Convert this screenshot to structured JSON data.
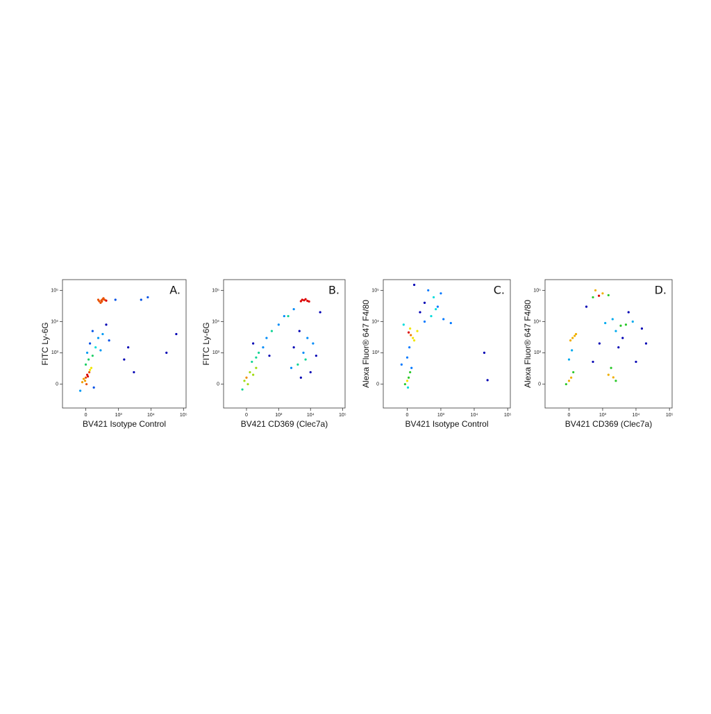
{
  "chart_data": [
    {
      "type": "scatter",
      "annotation": "A.",
      "xlabel": "BV421 Isotype Control",
      "ylabel": "FITC Ly-6G",
      "colormap": "jet",
      "scale": "biexponential",
      "xlim": [
        -500,
        120000
      ],
      "ylim": [
        -560,
        220000
      ],
      "xticks": [
        0,
        {
          "value": 1000,
          "label": "10³"
        },
        {
          "value": 10000,
          "label": "10⁴"
        },
        {
          "value": 100000,
          "label": "10⁵"
        }
      ],
      "yticks": [
        0,
        {
          "value": 1000,
          "label": "10³"
        },
        {
          "value": 10000,
          "label": "10⁴"
        },
        {
          "value": 100000,
          "label": "10⁵"
        }
      ],
      "x": [
        0,
        20,
        -30,
        50,
        -10,
        30,
        80,
        10,
        -50,
        60,
        0,
        40,
        100,
        20,
        150,
        60,
        200,
        100,
        300,
        250,
        400,
        500,
        -80,
        120,
        270,
        300,
        220,
        350,
        250,
        320,
        200,
        400,
        280,
        2000,
        1500,
        5000,
        8000,
        30000,
        60000,
        3000,
        800
      ],
      "values": [
        100,
        150,
        80,
        200,
        50,
        120,
        300,
        0,
        30,
        250,
        400,
        600,
        800,
        1000,
        1500,
        2000,
        3000,
        5000,
        4000,
        1200,
        8000,
        2500,
        -100,
        -50,
        48000,
        52000,
        45000,
        50000,
        40000,
        56000,
        50000,
        47000,
        44000,
        1500,
        600,
        50000,
        60000,
        1000,
        4000,
        200,
        50000
      ]
    },
    {
      "type": "scatter",
      "annotation": "B.",
      "xlabel": "BV421 CD369 (Clec7a)",
      "ylabel": "FITC Ly-6G",
      "colormap": "jet",
      "scale": "biexponential",
      "xlim": [
        -500,
        120000
      ],
      "ylim": [
        -560,
        220000
      ],
      "xticks": [
        0,
        {
          "value": 1000,
          "label": "10³"
        },
        {
          "value": 10000,
          "label": "10⁴"
        },
        {
          "value": 100000,
          "label": "10⁵"
        }
      ],
      "yticks": [
        0,
        {
          "value": 1000,
          "label": "10³"
        },
        {
          "value": 10000,
          "label": "10⁴"
        },
        {
          "value": 100000,
          "label": "10⁵"
        }
      ],
      "x": [
        0,
        50,
        -30,
        100,
        20,
        150,
        -60,
        80,
        200,
        300,
        100,
        400,
        600,
        1000,
        2000,
        3000,
        500,
        150,
        6300,
        5000,
        7000,
        8000,
        5500,
        9000,
        4000,
        6000,
        10000,
        3000,
        15000,
        8000,
        5000,
        12000,
        4500,
        20000,
        2500,
        7000,
        1500
      ],
      "values": [
        100,
        200,
        50,
        150,
        0,
        300,
        -80,
        500,
        1000,
        1500,
        2000,
        3000,
        5000,
        8000,
        15000,
        25000,
        800,
        700,
        48000,
        45000,
        52000,
        46000,
        50000,
        44000,
        400,
        1000,
        200,
        1500,
        800,
        3000,
        100,
        2000,
        5000,
        20000,
        300,
        600,
        15000
      ]
    },
    {
      "type": "scatter",
      "annotation": "C.",
      "xlabel": "BV421 Isotype Control",
      "ylabel": "Alexa Fluor® 647 F4/80",
      "colormap": "jet",
      "scale": "biexponential",
      "xlim": [
        -500,
        120000
      ],
      "ylim": [
        -560,
        220000
      ],
      "xticks": [
        0,
        {
          "value": 1000,
          "label": "10³"
        },
        {
          "value": 10000,
          "label": "10⁴"
        },
        {
          "value": 100000,
          "label": "10⁵"
        }
      ],
      "yticks": [
        0,
        {
          "value": 1000,
          "label": "10³"
        },
        {
          "value": 10000,
          "label": "10⁴"
        },
        {
          "value": 100000,
          "label": "10⁵"
        }
      ],
      "x": [
        0,
        20,
        -30,
        40,
        10,
        60,
        0,
        30,
        50,
        80,
        20,
        100,
        40,
        150,
        300,
        500,
        200,
        800,
        600,
        1000,
        400,
        300,
        700,
        1200,
        -50,
        100,
        2000,
        20000,
        25000,
        -80
      ],
      "values": [
        50,
        100,
        0,
        200,
        -50,
        300,
        700,
        1500,
        3700,
        3000,
        4500,
        2500,
        6000,
        5000,
        10000,
        15000,
        20000,
        30000,
        60000,
        80000,
        100000,
        40000,
        25000,
        12000,
        8000,
        150000,
        9000,
        1000,
        60,
        400
      ]
    },
    {
      "type": "scatter",
      "annotation": "D.",
      "xlabel": "BV421 CD369 (Clec7a)",
      "ylabel": "Alexa Fluor® 647 F4/80",
      "colormap": "jet",
      "scale": "biexponential",
      "xlim": [
        -500,
        120000
      ],
      "ylim": [
        -560,
        220000
      ],
      "xticks": [
        0,
        {
          "value": 1000,
          "label": "10³"
        },
        {
          "value": 10000,
          "label": "10⁴"
        },
        {
          "value": 100000,
          "label": "10⁵"
        }
      ],
      "yticks": [
        0,
        {
          "value": 1000,
          "label": "10³"
        },
        {
          "value": 10000,
          "label": "10⁴"
        },
        {
          "value": 100000,
          "label": "10⁵"
        }
      ],
      "x": [
        0,
        30,
        -40,
        60,
        50,
        80,
        20,
        100,
        0,
        40,
        770,
        500,
        1000,
        600,
        1500,
        3500,
        2500,
        5000,
        4000,
        8000,
        2000,
        6000,
        3000,
        2100,
        1500,
        2500,
        1800,
        10000,
        500,
        800,
        15000,
        1200,
        20000,
        300
      ],
      "values": [
        50,
        100,
        0,
        200,
        3000,
        3500,
        2500,
        4000,
        600,
        1200,
        67000,
        60000,
        80000,
        100000,
        70000,
        7400,
        5000,
        8000,
        3000,
        10000,
        12000,
        20000,
        1500,
        104,
        150,
        50,
        300,
        500,
        500,
        2000,
        6000,
        9000,
        2000,
        30000
      ]
    }
  ]
}
